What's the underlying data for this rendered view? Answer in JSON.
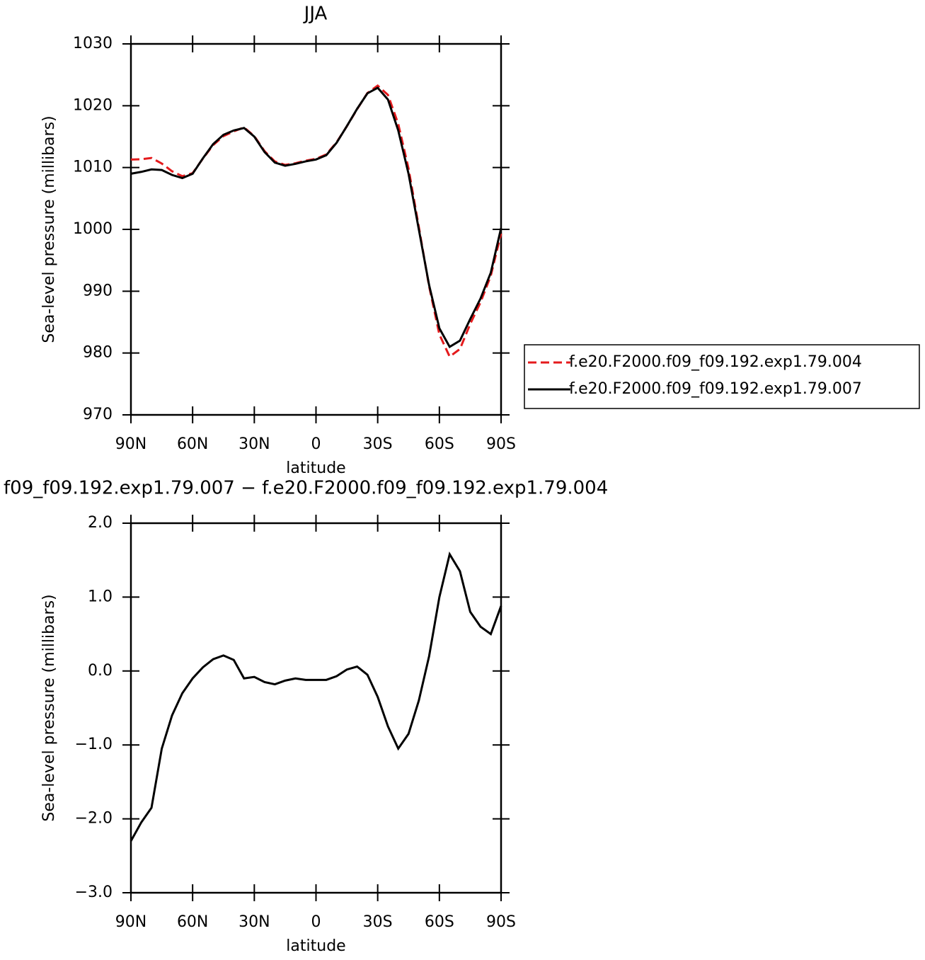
{
  "chart_data": [
    {
      "type": "line",
      "title": "JJA",
      "xlabel": "latitude",
      "ylabel": "Sea-level pressure (millibars)",
      "x": [
        90,
        85,
        80,
        75,
        70,
        65,
        60,
        55,
        50,
        45,
        40,
        35,
        30,
        25,
        20,
        15,
        10,
        5,
        0,
        -5,
        -10,
        -15,
        -20,
        -25,
        -30,
        -35,
        -40,
        -45,
        -50,
        -55,
        -60,
        -65,
        -70,
        -75,
        -80,
        -85,
        -90
      ],
      "xlim": [
        90,
        -90
      ],
      "xticks": [
        {
          "value": 90,
          "label": "90N"
        },
        {
          "value": 60,
          "label": "60N"
        },
        {
          "value": 30,
          "label": "30N"
        },
        0,
        {
          "value": -30,
          "label": "30S"
        },
        {
          "value": -60,
          "label": "60S"
        },
        {
          "value": -90,
          "label": "90S"
        }
      ],
      "ylim": [
        970,
        1030
      ],
      "yticks": [
        970,
        980,
        990,
        1000,
        1010,
        1020,
        1030
      ],
      "series": [
        {
          "name": "f.e20.F2000.f09_f09.192.exp1.79.004",
          "color": "#e41a1c",
          "dashed": true,
          "values": [
            1011.3,
            1011.35,
            1011.55,
            1010.65,
            1009.4,
            1008.6,
            1009.1,
            1011.45,
            1013.64,
            1015.09,
            1015.85,
            1016.5,
            1015.08,
            1012.65,
            1010.98,
            1010.43,
            1010.7,
            1011.12,
            1011.42,
            1012.12,
            1014.07,
            1016.68,
            1019.44,
            1022.05,
            1023.25,
            1021.75,
            1017.05,
            1009.85,
            1000.4,
            990.8,
            983.0,
            979.42,
            980.65,
            984.7,
            988.2,
            992.5,
            999.32
          ]
        },
        {
          "name": "f.e20.F2000.f09_f09.192.exp1.79.007",
          "color": "#000000",
          "dashed": false,
          "values": [
            1009.0,
            1009.3,
            1009.7,
            1009.6,
            1008.8,
            1008.3,
            1009.0,
            1011.5,
            1013.8,
            1015.3,
            1016.0,
            1016.4,
            1015.0,
            1012.5,
            1010.8,
            1010.3,
            1010.6,
            1011.0,
            1011.3,
            1012.0,
            1014.0,
            1016.7,
            1019.5,
            1022.0,
            1022.9,
            1021.0,
            1016.0,
            1009.0,
            1000.0,
            991.0,
            984.0,
            981.0,
            982.0,
            985.5,
            988.8,
            993.0,
            1000.2
          ]
        }
      ]
    },
    {
      "type": "line",
      "title": "f09_f09.192.exp1.79.007 − f.e20.F2000.f09_f09.192.exp1.79.004",
      "xlabel": "latitude",
      "ylabel": "Sea-level pressure (millibars)",
      "x": [
        90,
        85,
        80,
        75,
        70,
        65,
        60,
        55,
        50,
        45,
        40,
        35,
        30,
        25,
        20,
        15,
        10,
        5,
        0,
        -5,
        -10,
        -15,
        -20,
        -25,
        -30,
        -35,
        -40,
        -45,
        -50,
        -55,
        -60,
        -65,
        -70,
        -75,
        -80,
        -85,
        -90
      ],
      "xlim": [
        90,
        -90
      ],
      "xticks": [
        {
          "value": 90,
          "label": "90N"
        },
        {
          "value": 60,
          "label": "60N"
        },
        {
          "value": 30,
          "label": "30N"
        },
        0,
        {
          "value": -30,
          "label": "30S"
        },
        {
          "value": -60,
          "label": "60S"
        },
        {
          "value": -90,
          "label": "90S"
        }
      ],
      "ylim": [
        -3,
        2
      ],
      "yticks": [
        {
          "value": -3,
          "label": "−3.0"
        },
        {
          "value": -2,
          "label": "−2.0"
        },
        {
          "value": -1,
          "label": "−1.0"
        },
        {
          "value": 0,
          "label": "0.0"
        },
        {
          "value": 1,
          "label": "1.0"
        },
        {
          "value": 2,
          "label": "2.0"
        }
      ],
      "series": [
        {
          "color": "#000000",
          "dashed": false,
          "values": [
            -2.3,
            -2.05,
            -1.85,
            -1.05,
            -0.6,
            -0.3,
            -0.1,
            0.05,
            0.16,
            0.21,
            0.15,
            -0.1,
            -0.08,
            -0.15,
            -0.18,
            -0.13,
            -0.1,
            -0.12,
            -0.12,
            -0.12,
            -0.07,
            0.02,
            0.06,
            -0.05,
            -0.35,
            -0.75,
            -1.05,
            -0.85,
            -0.4,
            0.2,
            1.0,
            1.58,
            1.35,
            0.8,
            0.6,
            0.5,
            0.88
          ]
        }
      ]
    }
  ]
}
